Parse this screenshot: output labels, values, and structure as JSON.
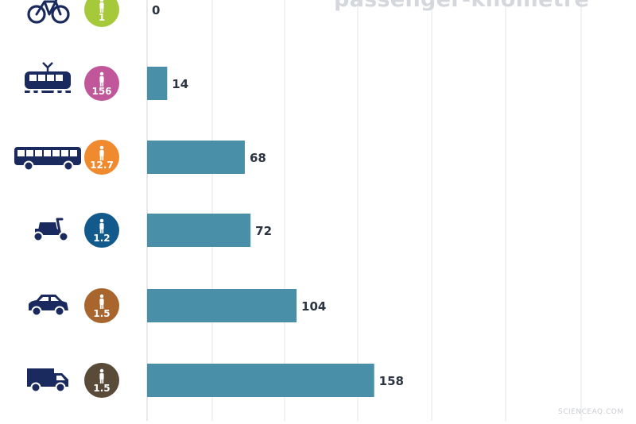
{
  "chart_data": {
    "type": "bar",
    "orientation": "horizontal",
    "title": "passenger-kilometre",
    "categories": [
      "bicycle",
      "tram",
      "bus",
      "scooter",
      "car",
      "van"
    ],
    "values": [
      0,
      14,
      68,
      72,
      104,
      158
    ],
    "value_labels": [
      "0",
      "14",
      "68",
      "72",
      "104",
      "158"
    ],
    "occupancy_labels": [
      "1",
      "156",
      "12.7",
      "1.2",
      "1.5",
      "1.5"
    ],
    "occupancy_colors": [
      "#a5c93a",
      "#c2569a",
      "#f08a2e",
      "#135a8c",
      "#a8652e",
      "#5a4a38"
    ],
    "icons": [
      "bicycle-icon",
      "tram-icon",
      "bus-icon",
      "scooter-icon",
      "car-icon",
      "van-icon"
    ],
    "xlim": [
      0,
      330
    ],
    "grid": true,
    "bar_color": "#4a8fa8",
    "icon_color": "#1a2a5e"
  },
  "watermark": "SCIENCEAQ.COM"
}
